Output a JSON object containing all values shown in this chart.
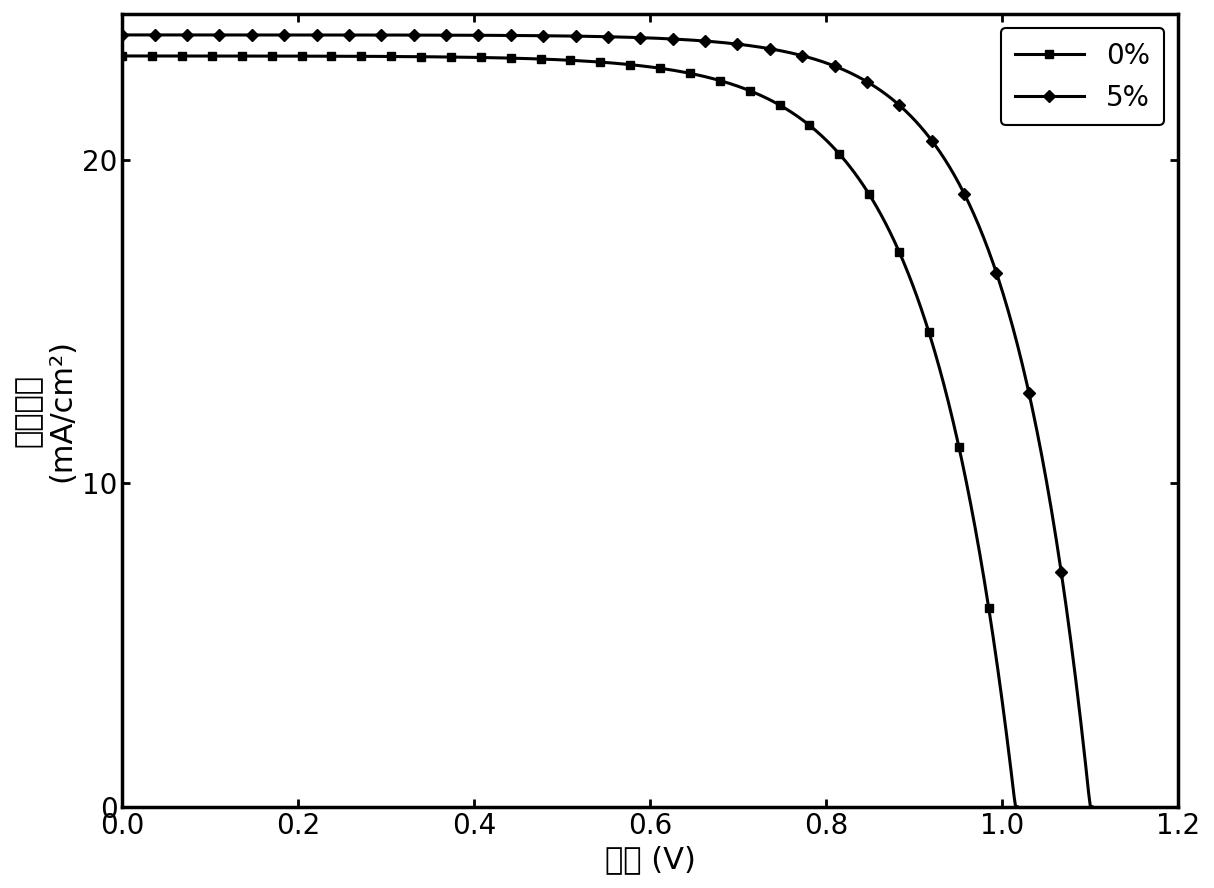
{
  "curve_0pct": {
    "label": "0%",
    "marker": "s",
    "Jsc": 23.2,
    "Voc": 1.015,
    "n_ideal": 3.5,
    "Rs": 2.5
  },
  "curve_5pct": {
    "label": "5%",
    "marker": "D",
    "Jsc": 23.85,
    "Voc": 1.1,
    "n_ideal": 3.2,
    "Rs": 1.8
  },
  "xlabel": "电压 (V)",
  "ylabel_line1": "电流密度",
  "ylabel_line2": "(mA/cm²)",
  "xlim": [
    0.0,
    1.2
  ],
  "ylim": [
    0.0,
    24.5
  ],
  "yticks": [
    0,
    10,
    20
  ],
  "xticks": [
    0.0,
    0.2,
    0.4,
    0.6,
    0.8,
    1.0,
    1.2
  ],
  "legend_loc": "upper right",
  "background_color": "#ffffff",
  "line_color": "#000000",
  "linewidth": 2.2,
  "markersize": 6,
  "n_markers": 30
}
